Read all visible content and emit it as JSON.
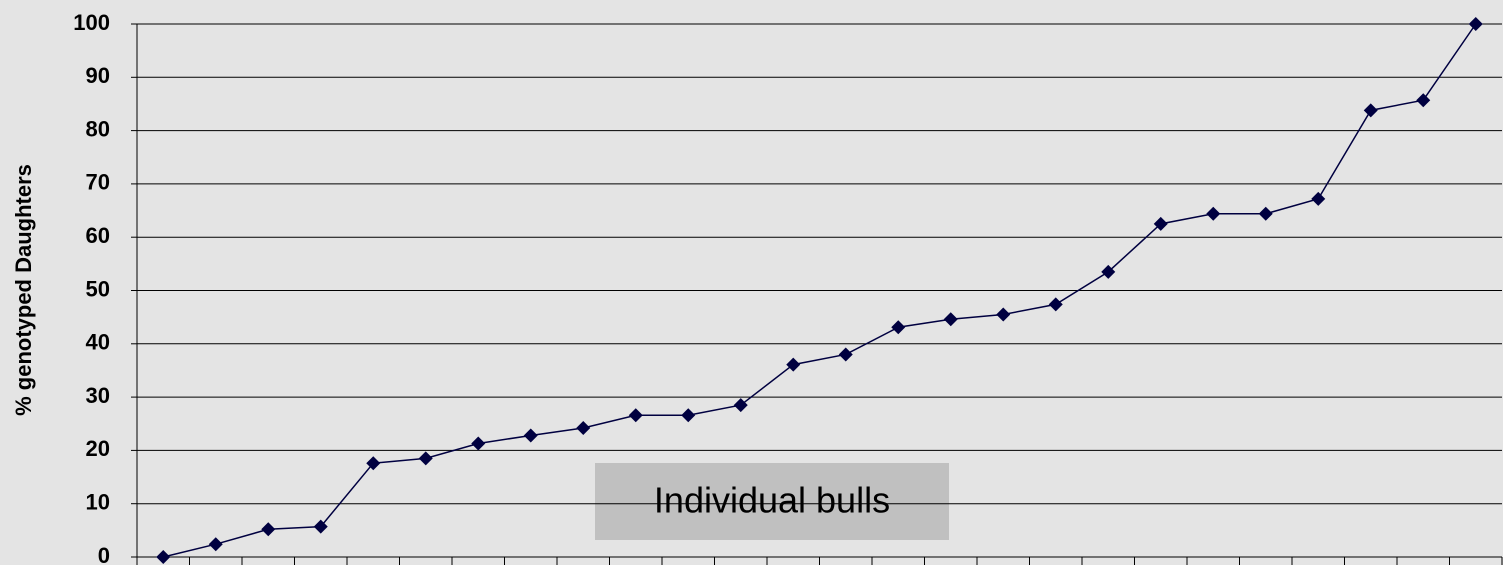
{
  "chart_data": {
    "type": "line",
    "y_label": "% genotyped Daughters",
    "annotation": "Individual bulls",
    "categories": [
      null,
      null,
      null,
      null,
      null,
      null,
      null,
      null,
      null,
      null,
      null,
      null,
      null,
      null,
      null,
      null,
      null,
      null,
      null,
      null,
      null,
      null,
      null,
      null,
      null,
      null
    ],
    "series": [
      {
        "name": null,
        "color": "#000040",
        "values": [
          0,
          2.4,
          5.2,
          5.7,
          17.6,
          18.5,
          21.3,
          22.8,
          24.2,
          26.6,
          26.6,
          28.5,
          36.1,
          38.0,
          43.1,
          44.6,
          45.5,
          47.4,
          53.5,
          62.5,
          64.4,
          64.4,
          67.2,
          83.8,
          85.7,
          100
        ]
      }
    ],
    "ylim": [
      0,
      100
    ],
    "yticks": [
      0,
      10,
      20,
      30,
      40,
      50,
      60,
      70,
      80,
      90,
      100
    ],
    "grid": true
  }
}
